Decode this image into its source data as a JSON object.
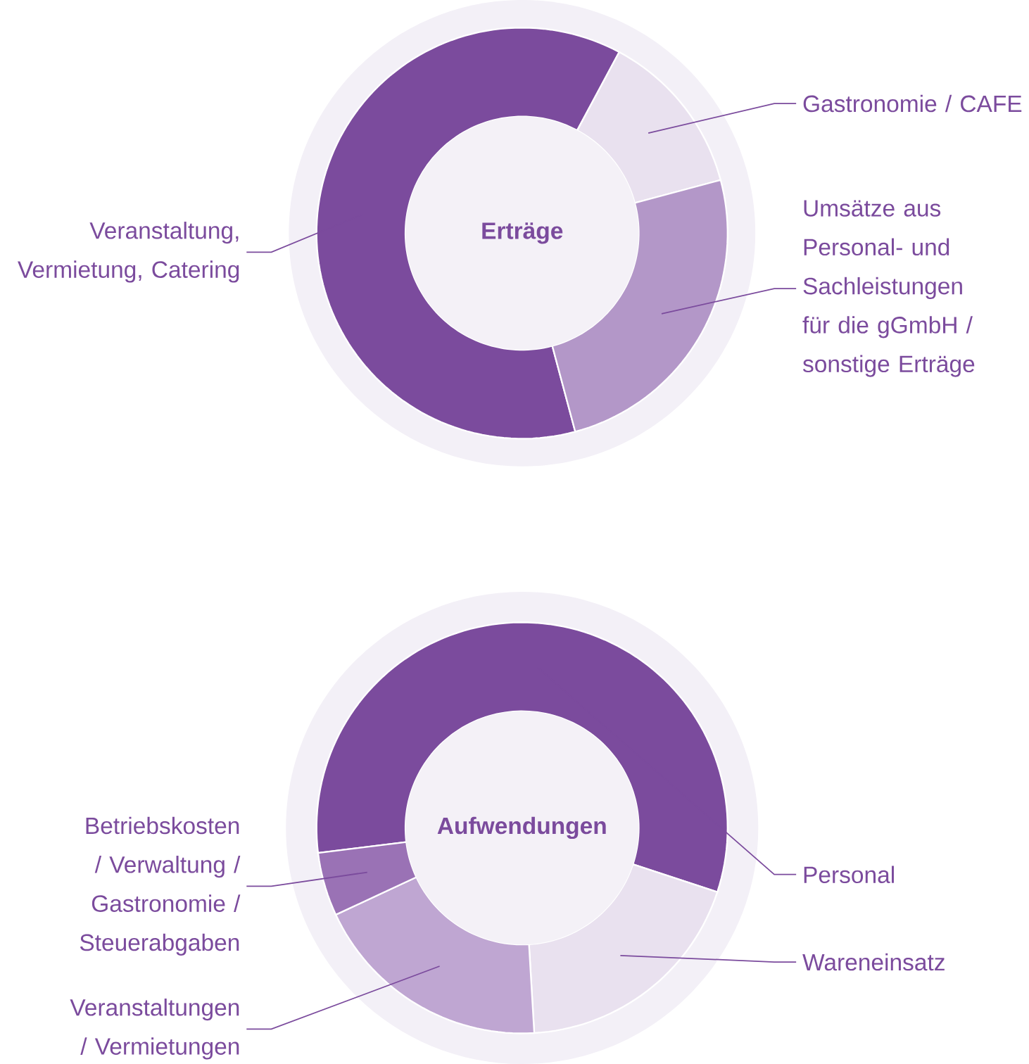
{
  "chart_data": [
    {
      "type": "donut",
      "title": "Erträge",
      "categories": [
        "Veranstaltung, Vermietung, Catering",
        "Gastronomie / CAFE",
        "Umsätze aus Personal- und Sachleistungen für die gGmbH / sonstige Erträge"
      ],
      "values": [
        62,
        13,
        25
      ],
      "colors": [
        "#7b4b9d",
        "#e9e1ef",
        "#b397c8"
      ]
    },
    {
      "type": "donut",
      "title": "Aufwendungen",
      "categories": [
        "Personal",
        "Wareneinsatz",
        "Veranstaltungen / Vermietungen",
        "Betriebskosten / Verwaltung / Gastronomie / Steuerabgaben"
      ],
      "values": [
        57,
        19,
        19,
        5
      ],
      "colors": [
        "#7b4b9d",
        "#e9e1ef",
        "#bfa6d2",
        "#9a72b5"
      ]
    }
  ]
}
